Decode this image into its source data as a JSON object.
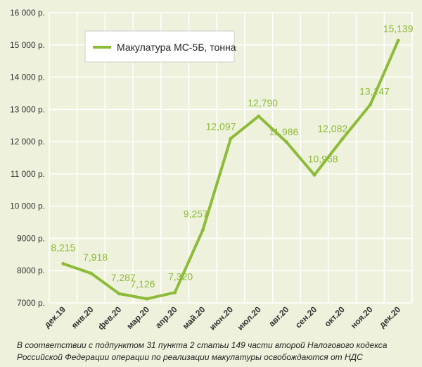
{
  "chart_data": {
    "type": "line",
    "title": "",
    "xlabel": "",
    "ylabel": "",
    "categories": [
      "дек.19",
      "янв.20",
      "фев.20",
      "мар.20",
      "апр.20",
      "май.20",
      "июн.20",
      "июл.20",
      "авг.20",
      "сен.20",
      "окт.20",
      "ноя.20",
      "дек.20"
    ],
    "series": [
      {
        "name": "Макулатура МС-5Б, тонна",
        "values": [
          8215,
          7918,
          7287,
          7126,
          7320,
          9257,
          12097,
          12790,
          11986,
          10968,
          12082,
          13147,
          15139
        ],
        "labels": [
          "8,215",
          "7,918",
          "7,287",
          "7,126",
          "7,320",
          "9,257",
          "12,097",
          "12,790",
          "11,986",
          "10,968",
          "12,082",
          "13,147",
          "15,139"
        ]
      }
    ],
    "ylim": [
      7000,
      16000
    ],
    "yticks": [
      7000,
      8000,
      9000,
      10000,
      11000,
      12000,
      13000,
      14000,
      15000,
      16000
    ],
    "ytick_labels": [
      "7000 р.",
      "8000 р.",
      "9000 р.",
      "10 000 р.",
      "11 000 р.",
      "12 000 р.",
      "13 000 р.",
      "14 000 р.",
      "15 000 р.",
      "16 000 р."
    ],
    "grid": true,
    "legend": "top-left",
    "colors": {
      "line": "#8dbb3a",
      "grid": "#ffffff",
      "background": "#eef2dc"
    }
  },
  "footnote": {
    "line1": "В соответствии с подпунктом 31 пункта 2 статьи 149 части второй Налогового кодекса",
    "line2": "Российской Федерации операции по реализации макулатуры освобождаются от НДС"
  }
}
